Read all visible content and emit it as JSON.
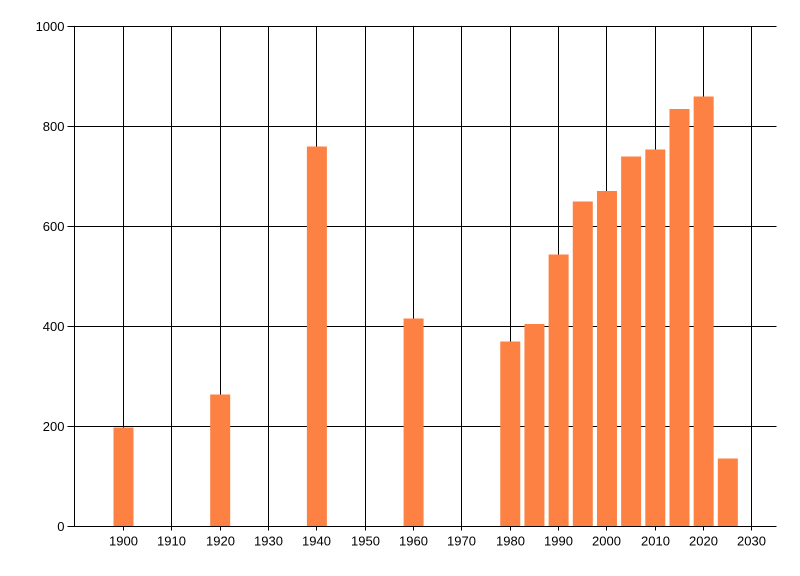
{
  "chart_data": {
    "type": "bar",
    "x": [
      1900,
      1920,
      1940,
      1960,
      1980,
      1985,
      1990,
      1995,
      2000,
      2005,
      2010,
      2015,
      2020,
      2025
    ],
    "values": [
      198,
      264,
      760,
      416,
      370,
      405,
      544,
      650,
      671,
      740,
      754,
      835,
      860,
      136
    ],
    "xticks": [
      1900,
      1910,
      1920,
      1930,
      1940,
      1950,
      1960,
      1970,
      1980,
      1990,
      2000,
      2010,
      2020,
      2030
    ],
    "yticks": [
      0,
      200,
      400,
      600,
      800,
      1000
    ],
    "ylim": [
      0,
      1000
    ],
    "xlim": [
      1890,
      2035
    ],
    "grid": true,
    "legend": "none",
    "bar_color": "#FC8142",
    "grid_color": "#000000",
    "axis_color": "#000000",
    "tick_label_color": "#000000",
    "background_color": "#FFFFFF"
  }
}
